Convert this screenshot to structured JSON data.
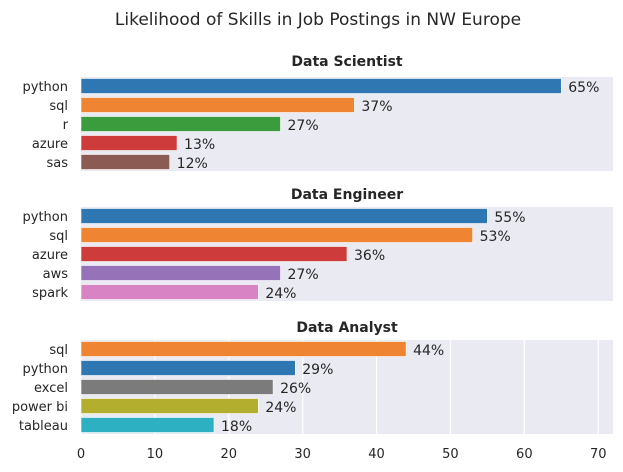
{
  "chart_data": {
    "type": "bar",
    "orientation": "horizontal",
    "title": "Likelihood of Skills in Job Postings in NW Europe",
    "xlim": [
      0,
      72
    ],
    "xticks": [
      0,
      10,
      20,
      30,
      40,
      50,
      60,
      70
    ],
    "grid": true,
    "grid_shown_on": "Data Analyst",
    "shared_x_axis": true,
    "panels": [
      {
        "title": "Data Scientist",
        "categories": [
          "python",
          "sql",
          "r",
          "azure",
          "sas"
        ],
        "values": [
          65,
          37,
          27,
          13,
          12
        ],
        "labels": [
          "65%",
          "37%",
          "27%",
          "13%",
          "12%"
        ],
        "colors": [
          "#2f77b2",
          "#ef8433",
          "#3a9c3d",
          "#cd3c3b",
          "#8b5b53"
        ]
      },
      {
        "title": "Data Engineer",
        "categories": [
          "python",
          "sql",
          "azure",
          "aws",
          "spark"
        ],
        "values": [
          55,
          53,
          36,
          27,
          24
        ],
        "labels": [
          "55%",
          "53%",
          "36%",
          "27%",
          "24%"
        ],
        "colors": [
          "#2f77b2",
          "#ef8433",
          "#cd3c3b",
          "#9672b8",
          "#d884c4"
        ]
      },
      {
        "title": "Data Analyst",
        "categories": [
          "sql",
          "python",
          "excel",
          "power bi",
          "tableau"
        ],
        "values": [
          44,
          29,
          26,
          24,
          18
        ],
        "labels": [
          "44%",
          "29%",
          "26%",
          "24%",
          "18%"
        ],
        "colors": [
          "#ef8433",
          "#2f77b2",
          "#7b7b7b",
          "#b4ae2e",
          "#2db1c2"
        ]
      }
    ]
  }
}
